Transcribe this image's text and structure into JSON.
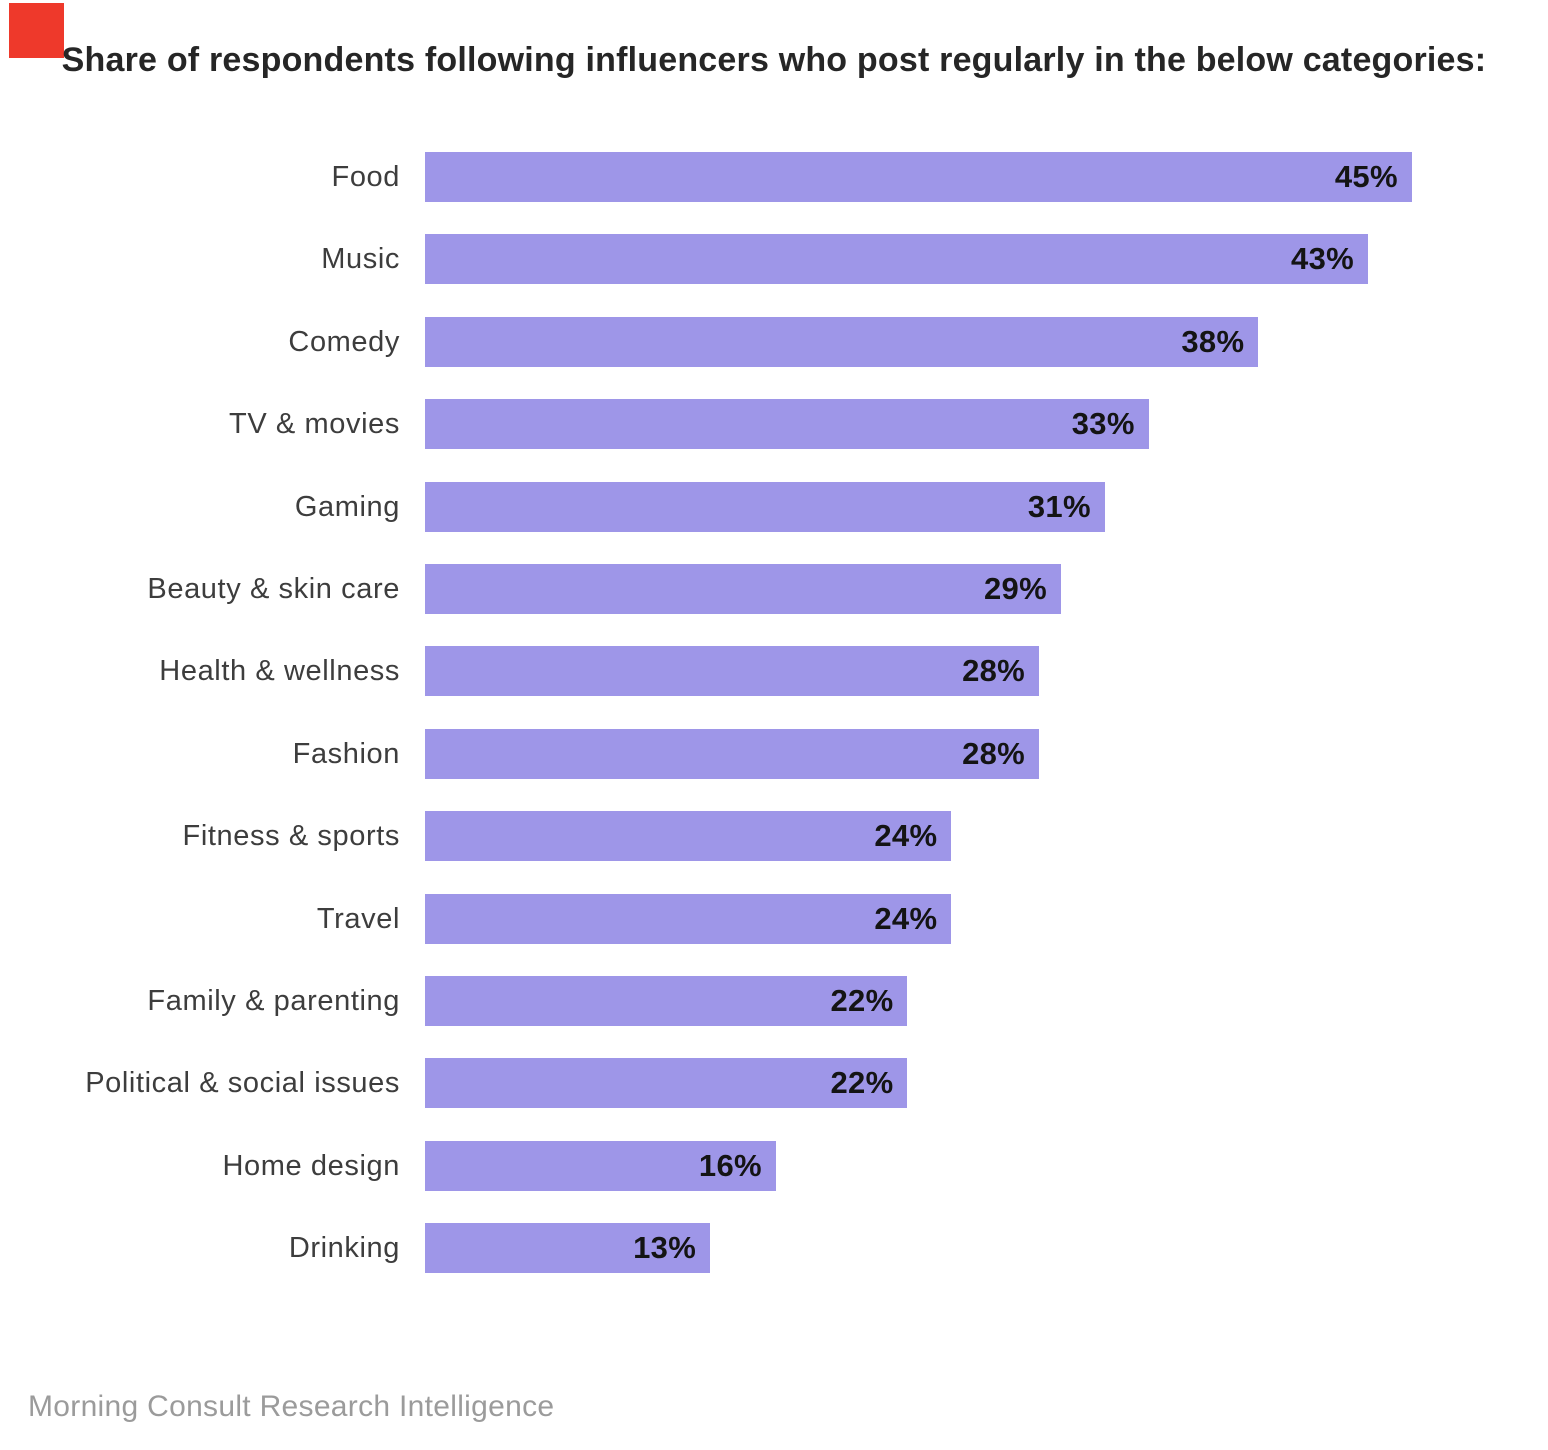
{
  "title_block": {
    "title": "Share of respondents following influencers who post regularly in the below categories:"
  },
  "source": "Morning Consult Research Intelligence",
  "colors": {
    "bar": "#9e96e8",
    "red_mark": "#ee392b",
    "value_label": "#141414",
    "category_label": "#3d3d3d",
    "title": "#262626",
    "source": "#9b9b9b",
    "background": "#ffffff"
  },
  "chart_data": {
    "type": "bar",
    "orientation": "horizontal",
    "title": "Share of respondents following influencers who post regularly in the below categories:",
    "categories": [
      "Food",
      "Music",
      "Comedy",
      "TV & movies",
      "Gaming",
      "Beauty & skin care",
      "Health & wellness",
      "Fashion",
      "Fitness & sports",
      "Travel",
      "Family & parenting",
      "Political & social issues",
      "Home design",
      "Drinking"
    ],
    "values": [
      45,
      43,
      38,
      33,
      31,
      29,
      28,
      28,
      24,
      24,
      22,
      22,
      16,
      13
    ],
    "value_suffix": "%",
    "xlim": [
      0,
      45
    ],
    "grid": false,
    "legend": false,
    "value_labels_inside_bar_end": true
  }
}
